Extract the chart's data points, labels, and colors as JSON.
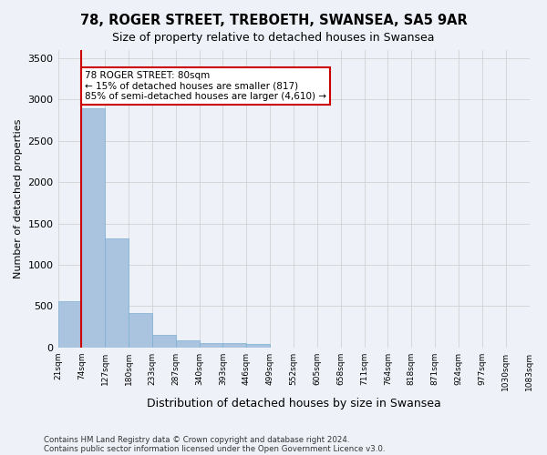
{
  "title": "78, ROGER STREET, TREBOETH, SWANSEA, SA5 9AR",
  "subtitle": "Size of property relative to detached houses in Swansea",
  "xlabel": "Distribution of detached houses by size in Swansea",
  "ylabel": "Number of detached properties",
  "footer_line1": "Contains HM Land Registry data © Crown copyright and database right 2024.",
  "footer_line2": "Contains public sector information licensed under the Open Government Licence v3.0.",
  "bin_labels": [
    "21sqm",
    "74sqm",
    "127sqm",
    "180sqm",
    "233sqm",
    "287sqm",
    "340sqm",
    "393sqm",
    "446sqm",
    "499sqm",
    "552sqm",
    "605sqm",
    "658sqm",
    "711sqm",
    "764sqm",
    "818sqm",
    "871sqm",
    "924sqm",
    "977sqm",
    "1030sqm",
    "1083sqm"
  ],
  "bar_values": [
    560,
    2900,
    1320,
    410,
    155,
    80,
    55,
    48,
    45,
    0,
    0,
    0,
    0,
    0,
    0,
    0,
    0,
    0,
    0,
    0
  ],
  "bar_color": "#aac4e0",
  "bar_edge_color": "#7aafd4",
  "grid_color": "#cccccc",
  "bg_color": "#eef2f8",
  "red_line_x": 1,
  "annotation_text": "78 ROGER STREET: 80sqm\n← 15% of detached houses are smaller (817)\n85% of semi-detached houses are larger (4,610) →",
  "annotation_box_color": "#ffffff",
  "annotation_box_edge_color": "#cc0000",
  "ylim": [
    0,
    3600
  ],
  "yticks": [
    0,
    500,
    1000,
    1500,
    2000,
    2500,
    3000,
    3500
  ]
}
